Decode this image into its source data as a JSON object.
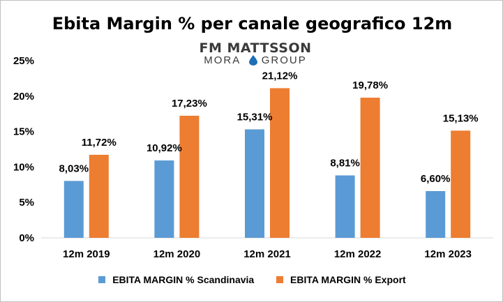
{
  "chart_data": {
    "type": "bar",
    "title": "Ebita Margin % per canale geografico 12m",
    "categories": [
      "12m 2019",
      "12m 2020",
      "12m 2021",
      "12m 2022",
      "12m 2023"
    ],
    "series": [
      {
        "name": "EBITA MARGIN % Scandinavia",
        "color": "#5b9bd5",
        "values": [
          8.03,
          10.92,
          15.31,
          8.81,
          6.6
        ],
        "labels": [
          "8,03%",
          "10,92%",
          "15,31%",
          "8,81%",
          "6,60%"
        ]
      },
      {
        "name": "EBITA MARGIN % Export",
        "color": "#ed7d31",
        "values": [
          11.72,
          17.23,
          21.12,
          19.78,
          15.13
        ],
        "labels": [
          "11,72%",
          "17,23%",
          "21,12%",
          "19,78%",
          "15,13%"
        ]
      }
    ],
    "ylim": [
      0,
      25
    ],
    "yticks": [
      "0%",
      "5%",
      "10%",
      "15%",
      "20%",
      "25%"
    ],
    "grid": false,
    "legend_position": "bottom"
  },
  "logo": {
    "line1": "FM MATTSSON",
    "line2_left": "MORA",
    "line2_right": "GROUP",
    "drop_color": "#1f6fb5"
  }
}
